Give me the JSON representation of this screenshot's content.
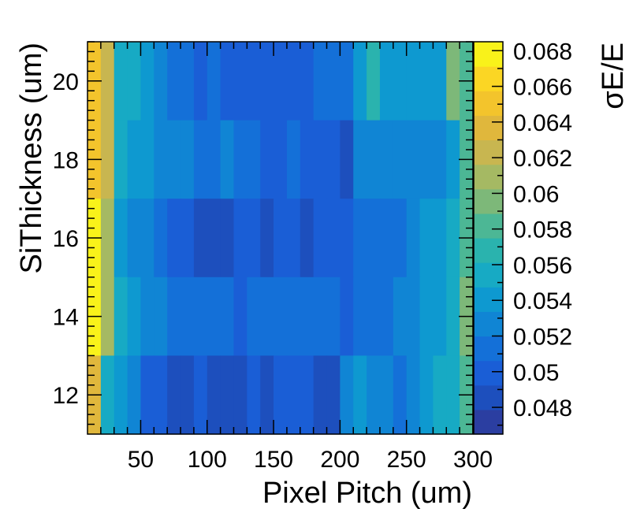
{
  "chart_data": {
    "type": "heatmap",
    "title": "",
    "xlabel": "Pixel Pitch (um)",
    "ylabel": "SiThickness (um)",
    "zlabel": "σE/E",
    "xlim": [
      10,
      300
    ],
    "ylim": [
      11,
      21
    ],
    "zlim": [
      0.0465,
      0.0685
    ],
    "x_ticks": [
      50,
      100,
      150,
      200,
      250,
      300
    ],
    "y_ticks": [
      12,
      14,
      16,
      18,
      20
    ],
    "z_ticks": [
      0.048,
      0.05,
      0.052,
      0.054,
      0.056,
      0.058,
      0.06,
      0.062,
      0.064,
      0.066,
      0.068
    ],
    "z_tick_labels": [
      "0.048",
      "0.05",
      "0.052",
      "0.054",
      "0.056",
      "0.058",
      "0.06",
      "0.062",
      "0.064",
      "0.066",
      "0.068"
    ],
    "x_bin_edges": [
      10,
      20,
      30,
      40,
      50,
      60,
      70,
      80,
      90,
      100,
      110,
      120,
      130,
      140,
      150,
      160,
      170,
      180,
      190,
      200,
      210,
      220,
      230,
      240,
      250,
      260,
      270,
      280,
      290,
      300
    ],
    "y_bin_edges": [
      11,
      13,
      15,
      17,
      19,
      21
    ],
    "rows_top_to_bottom": [
      {
        "y_range": [
          19,
          21
        ],
        "values": [
          0.0645,
          0.0625,
          0.056,
          0.056,
          0.0545,
          0.053,
          0.0515,
          0.0515,
          0.05,
          0.0515,
          0.05,
          0.05,
          0.05,
          0.05,
          0.05,
          0.05,
          0.05,
          0.0515,
          0.0515,
          0.0515,
          0.0545,
          0.057,
          0.0545,
          0.0545,
          0.0545,
          0.0545,
          0.0545,
          0.0595,
          0.058
        ]
      },
      {
        "y_range": [
          17,
          19
        ],
        "values": [
          0.0645,
          0.0625,
          0.056,
          0.0545,
          0.0545,
          0.053,
          0.053,
          0.053,
          0.0515,
          0.0515,
          0.053,
          0.0515,
          0.0515,
          0.05,
          0.05,
          0.0515,
          0.05,
          0.05,
          0.05,
          0.0485,
          0.053,
          0.053,
          0.053,
          0.053,
          0.053,
          0.053,
          0.053,
          0.0545,
          0.058
        ]
      },
      {
        "y_range": [
          15,
          17
        ],
        "values": [
          0.0675,
          0.061,
          0.0545,
          0.053,
          0.053,
          0.0515,
          0.05,
          0.05,
          0.0485,
          0.0485,
          0.0485,
          0.05,
          0.05,
          0.0485,
          0.05,
          0.05,
          0.0485,
          0.05,
          0.05,
          0.05,
          0.0515,
          0.0515,
          0.0515,
          0.0515,
          0.053,
          0.0545,
          0.0545,
          0.056,
          0.058
        ]
      },
      {
        "y_range": [
          13,
          15
        ],
        "values": [
          0.068,
          0.061,
          0.056,
          0.0545,
          0.053,
          0.053,
          0.0515,
          0.0515,
          0.0515,
          0.0515,
          0.0515,
          0.05,
          0.0515,
          0.0515,
          0.0515,
          0.0515,
          0.0515,
          0.0515,
          0.0515,
          0.05,
          0.0515,
          0.0515,
          0.0515,
          0.053,
          0.053,
          0.0545,
          0.0545,
          0.056,
          0.0595
        ]
      },
      {
        "y_range": [
          11,
          13
        ],
        "values": [
          0.064,
          0.056,
          0.0545,
          0.053,
          0.05,
          0.05,
          0.0485,
          0.0485,
          0.05,
          0.0485,
          0.0485,
          0.0485,
          0.05,
          0.0485,
          0.05,
          0.05,
          0.05,
          0.0485,
          0.0485,
          0.053,
          0.0545,
          0.053,
          0.053,
          0.0515,
          0.053,
          0.0545,
          0.056,
          0.056,
          0.058
        ]
      }
    ],
    "palette": [
      "#2b3ea1",
      "#1d4fbd",
      "#1a5ed6",
      "#1470d8",
      "#1085d4",
      "#0e99d0",
      "#17aac4",
      "#2ab3ae",
      "#4cb795",
      "#7db879",
      "#a5b963",
      "#c8b650",
      "#e0b73c",
      "#f3c42c",
      "#fbd624",
      "#f9f21a"
    ],
    "grid": false,
    "legend": "colorbar-right"
  }
}
